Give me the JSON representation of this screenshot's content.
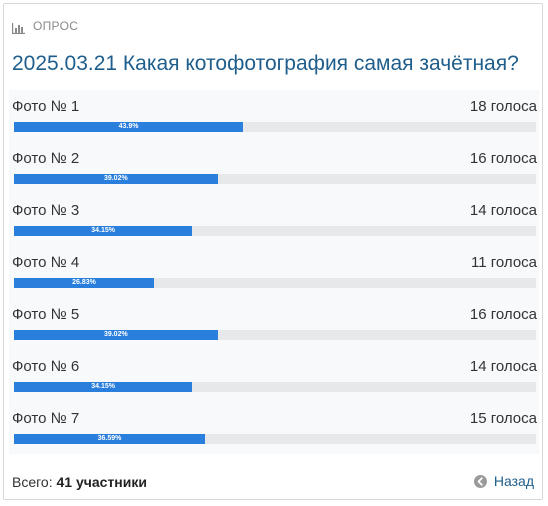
{
  "header": {
    "label": "ОПРОС",
    "icon": "bar-chart-icon"
  },
  "poll": {
    "title": "2025.03.21 Какая котофотография самая зачётная?",
    "options": [
      {
        "label": "Фото № 1",
        "votes": "18 голоса",
        "percent": 43.9,
        "percent_text": "43.9%"
      },
      {
        "label": "Фото № 2",
        "votes": "16 голоса",
        "percent": 39.02,
        "percent_text": "39.02%"
      },
      {
        "label": "Фото № 3",
        "votes": "14 голоса",
        "percent": 34.15,
        "percent_text": "34.15%"
      },
      {
        "label": "Фото № 4",
        "votes": "11 голоса",
        "percent": 26.83,
        "percent_text": "26.83%"
      },
      {
        "label": "Фото № 5",
        "votes": "16 голоса",
        "percent": 39.02,
        "percent_text": "39.02%"
      },
      {
        "label": "Фото № 6",
        "votes": "14 голоса",
        "percent": 34.15,
        "percent_text": "34.15%"
      },
      {
        "label": "Фото № 7",
        "votes": "15 голоса",
        "percent": 36.59,
        "percent_text": "36.59%"
      }
    ]
  },
  "footer": {
    "total_prefix": "Всего:",
    "total_value": "41 участники",
    "back_label": "Назад",
    "back_icon": "arrow-left-circle-icon"
  },
  "colors": {
    "accent": "#1f5e8c",
    "bar": "#2a7fdd",
    "track": "#e6e8ea"
  }
}
